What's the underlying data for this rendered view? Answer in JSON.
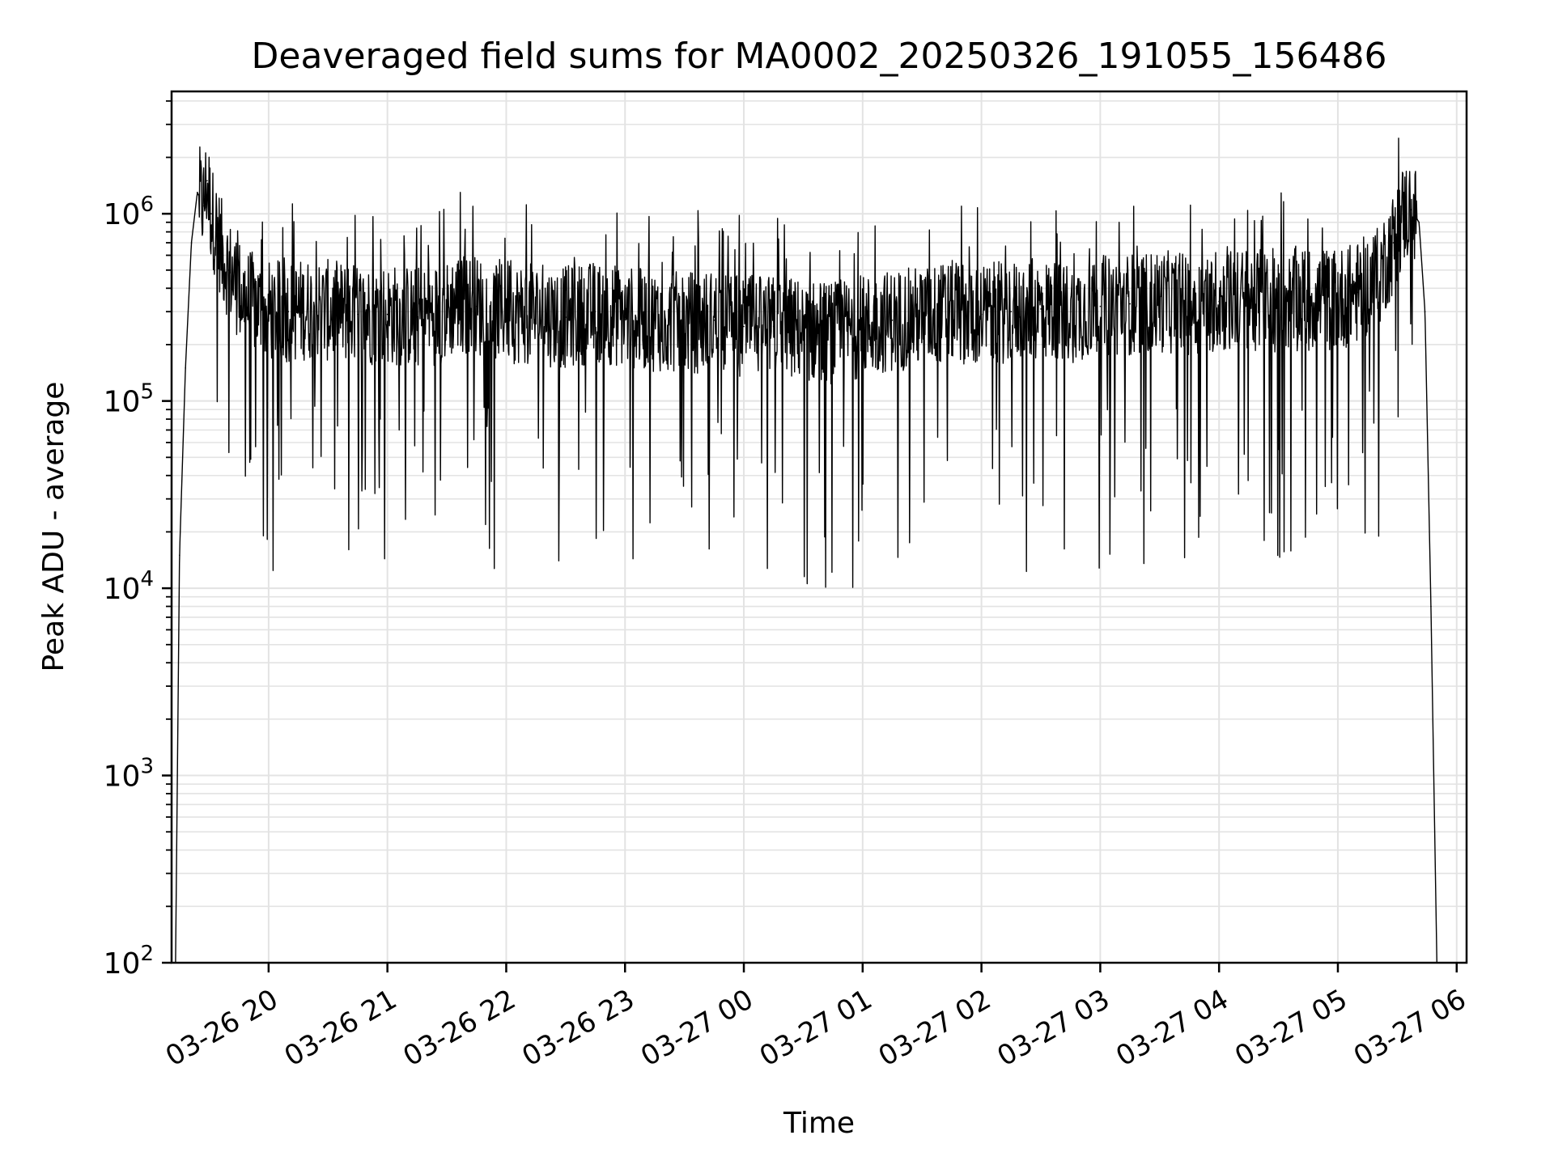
{
  "chart_data": {
    "type": "line",
    "title": "Deaveraged field sums for MA0002_20250326_191055_156486",
    "xlabel": "Time",
    "ylabel": "Peak ADU - average",
    "x_axis_kind": "datetime",
    "y_scale": "log",
    "ylim": [
      100,
      4500000
    ],
    "xlim": [
      "2025-03-26 19:11",
      "2025-03-27 06:05"
    ],
    "grid": true,
    "x_ticks": [
      {
        "value": "2025-03-26 20:00",
        "label": "03-26 20"
      },
      {
        "value": "2025-03-26 21:00",
        "label": "03-26 21"
      },
      {
        "value": "2025-03-26 22:00",
        "label": "03-26 22"
      },
      {
        "value": "2025-03-26 23:00",
        "label": "03-26 23"
      },
      {
        "value": "2025-03-27 00:00",
        "label": "03-27 00"
      },
      {
        "value": "2025-03-27 01:00",
        "label": "03-27 01"
      },
      {
        "value": "2025-03-27 02:00",
        "label": "03-27 02"
      },
      {
        "value": "2025-03-27 03:00",
        "label": "03-27 03"
      },
      {
        "value": "2025-03-27 04:00",
        "label": "03-27 04"
      },
      {
        "value": "2025-03-27 05:00",
        "label": "03-27 05"
      },
      {
        "value": "2025-03-27 06:00",
        "label": "03-27 06"
      }
    ],
    "y_ticks": [
      {
        "value": 100,
        "base": "10",
        "exp": "2"
      },
      {
        "value": 1000,
        "base": "10",
        "exp": "3"
      },
      {
        "value": 10000,
        "base": "10",
        "exp": "4"
      },
      {
        "value": 100000,
        "base": "10",
        "exp": "5"
      },
      {
        "value": 1000000,
        "base": "10",
        "exp": "6"
      }
    ],
    "series": [
      {
        "color": "#000000",
        "x": [
          "2025-03-26 19:13",
          "2025-03-26 19:15",
          "2025-03-26 19:18",
          "2025-03-26 19:21",
          "2025-03-26 19:24",
          "2025-03-26 19:27",
          "2025-03-26 19:29",
          "2025-03-26 19:31",
          "2025-03-26 19:34",
          "2025-03-26 19:37",
          "2025-03-26 19:40",
          "2025-03-26 19:44",
          "2025-03-26 19:48",
          "2025-03-26 19:53",
          "2025-03-26 19:58",
          "2025-03-26 20:10",
          "2025-03-26 20:20",
          "2025-03-26 20:35",
          "2025-03-26 20:45",
          "2025-03-26 21:00",
          "2025-03-26 21:15",
          "2025-03-26 21:30",
          "2025-03-26 21:35",
          "2025-03-26 21:45",
          "2025-03-26 22:00",
          "2025-03-26 22:15",
          "2025-03-26 22:30",
          "2025-03-26 22:45",
          "2025-03-26 23:00",
          "2025-03-26 23:15",
          "2025-03-26 23:30",
          "2025-03-26 23:45",
          "2025-03-27 00:00",
          "2025-03-27 00:15",
          "2025-03-27 00:30",
          "2025-03-27 00:45",
          "2025-03-27 01:00",
          "2025-03-27 01:15",
          "2025-03-27 01:30",
          "2025-03-27 01:45",
          "2025-03-27 02:00",
          "2025-03-27 02:15",
          "2025-03-27 02:30",
          "2025-03-27 02:45",
          "2025-03-27 03:00",
          "2025-03-27 03:15",
          "2025-03-27 03:30",
          "2025-03-27 03:45",
          "2025-03-27 04:00",
          "2025-03-27 04:15",
          "2025-03-27 04:30",
          "2025-03-27 04:45",
          "2025-03-27 05:00",
          "2025-03-27 05:10",
          "2025-03-27 05:20",
          "2025-03-27 05:28",
          "2025-03-27 05:33",
          "2025-03-27 05:37",
          "2025-03-27 05:41",
          "2025-03-27 05:44",
          "2025-03-27 05:47",
          "2025-03-27 05:50"
        ],
        "values": [
          100,
          15000,
          150000,
          700000,
          1300000,
          1100000,
          1500000,
          1000000,
          800000,
          600000,
          500000,
          420000,
          350000,
          330000,
          300000,
          300000,
          310000,
          300000,
          290000,
          290000,
          280000,
          300000,
          340000,
          320000,
          300000,
          290000,
          280000,
          300000,
          280000,
          270000,
          260000,
          270000,
          250000,
          250000,
          240000,
          230000,
          250000,
          270000,
          280000,
          300000,
          290000,
          300000,
          310000,
          300000,
          320000,
          330000,
          340000,
          330000,
          340000,
          350000,
          340000,
          350000,
          350000,
          380000,
          450000,
          700000,
          1000000,
          1050000,
          900000,
          300000,
          8000,
          100
        ],
        "notes": "dense noisy trace; frequent downward spikes to roughly 2e4-1e5 and upward spikes to roughly 6e5-1e6 throughout the plateau; largest peak ~3e6 near 19:30"
      }
    ]
  }
}
